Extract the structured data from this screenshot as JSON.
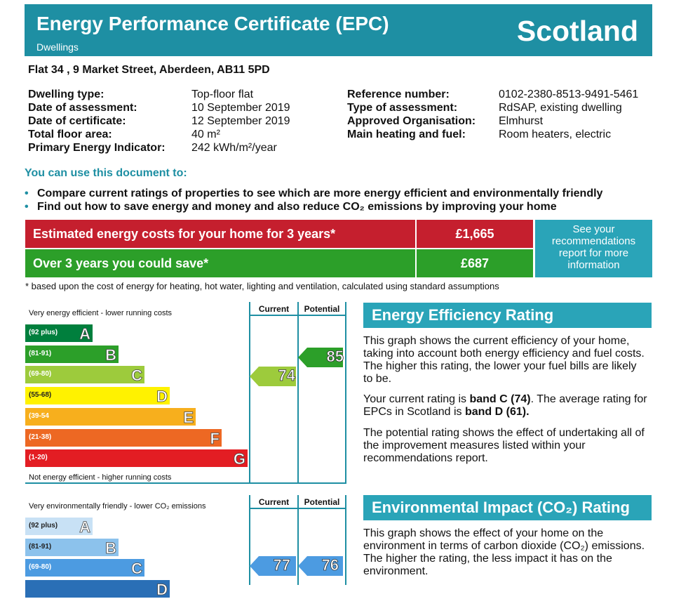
{
  "header": {
    "title": "Energy Performance Certificate (EPC)",
    "subtitle": "Dwellings",
    "country": "Scotland"
  },
  "address": "Flat 34 , 9 Market Street, Aberdeen, AB11 5PD",
  "details_left": [
    {
      "label": "Dwelling type:",
      "value": "Top-floor flat"
    },
    {
      "label": "Date of assessment:",
      "value": "10 September 2019"
    },
    {
      "label": "Date of certificate:",
      "value": "12 September 2019"
    },
    {
      "label": "Total floor area:",
      "value": "40 m²"
    },
    {
      "label": "Primary Energy Indicator:",
      "value": "242 kWh/m²/year"
    }
  ],
  "details_right": [
    {
      "label": "Reference number:",
      "value": "0102-2380-8513-9491-5461"
    },
    {
      "label": "Type of assessment:",
      "value": "RdSAP, existing dwelling"
    },
    {
      "label": "Approved Organisation:",
      "value": "Elmhurst"
    },
    {
      "label": "Main heating and fuel:",
      "value": "Room heaters, electric"
    }
  ],
  "use_heading": "You can use this document to:",
  "bullets": [
    "Compare current ratings of properties to see which are more energy efficient and environmentally friendly",
    "Find out how to save energy and money and also reduce CO₂ emissions by improving your home"
  ],
  "costs": {
    "estimated_label": "Estimated energy costs for your home for 3 years*",
    "estimated_value": "£1,665",
    "save_label": "Over 3 years you could save*",
    "save_value": "£687",
    "see_text": "See your recommendations report for more information",
    "footnote": "* based upon the cost of energy for heating, hot water, lighting and ventilation, calculated using standard assumptions"
  },
  "energy_chart": {
    "top_label": "Very energy efficient - lower running costs",
    "bottom_label": "Not energy efficient - higher running costs",
    "col_current": "Current",
    "col_potential": "Potential",
    "bands": [
      {
        "range": "(92 plus)",
        "letter": "A",
        "color": "#007f3d"
      },
      {
        "range": "(81-91)",
        "letter": "B",
        "color": "#2c9f29"
      },
      {
        "range": "(69-80)",
        "letter": "C",
        "color": "#9dcb3c"
      },
      {
        "range": "(55-68)",
        "letter": "D",
        "color": "#fff200"
      },
      {
        "range": "(39-54",
        "letter": "E",
        "color": "#f7af1d"
      },
      {
        "range": "(21-38)",
        "letter": "F",
        "color": "#ed6823"
      },
      {
        "range": "(1-20)",
        "letter": "G",
        "color": "#e31d23"
      }
    ],
    "current": {
      "value": "74",
      "band": "C",
      "color": "#9dcb3c"
    },
    "potential": {
      "value": "85",
      "band": "B",
      "color": "#2c9f29"
    }
  },
  "eer": {
    "heading": "Energy Efficiency Rating",
    "p1": "This graph shows the current efficiency of your home, taking into account both energy efficiency and fuel costs. The higher this rating, the lower your fuel bills are likely to be.",
    "p2_pre": "Your current rating is ",
    "p2_b1": "band C (74)",
    "p2_mid": ". The average rating for EPCs in Scotland is ",
    "p2_b2": "band D (61).",
    "p3": "The potential rating shows the effect of undertaking all of the improvement measures listed within your recommendations report."
  },
  "env_chart": {
    "top_label": "Very environmentally friendly - lower CO₂ emissions",
    "col_current": "Current",
    "col_potential": "Potential",
    "bands": [
      {
        "range": "(92 plus)",
        "letter": "A",
        "color": "#c8e1f5"
      },
      {
        "range": "(81-91)",
        "letter": "B",
        "color": "#8cc2ec"
      },
      {
        "range": "(69-80)",
        "letter": "C",
        "color": "#4c9be1"
      },
      {
        "range": "",
        "letter": "D",
        "color": "#2a6fb6"
      }
    ],
    "current": {
      "value": "77",
      "color": "#4c9be1"
    },
    "potential": {
      "value": "76",
      "color": "#4c9be1"
    }
  },
  "eir": {
    "heading": "Environmental Impact (CO₂) Rating",
    "p1": "This graph shows the effect of your home on the environment in terms of carbon dioxide (CO₂) emissions. The higher the rating, the less impact it has on the environment."
  }
}
